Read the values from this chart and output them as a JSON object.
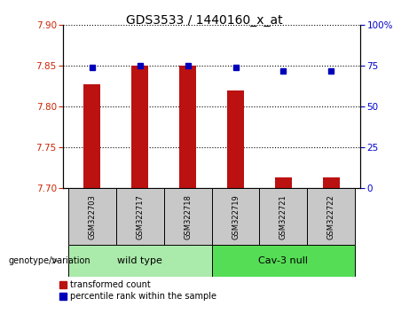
{
  "title": "GDS3533 / 1440160_x_at",
  "samples": [
    "GSM322703",
    "GSM322717",
    "GSM322718",
    "GSM322719",
    "GSM322721",
    "GSM322722"
  ],
  "red_values": [
    7.828,
    7.85,
    7.85,
    7.82,
    7.713,
    7.713
  ],
  "blue_values": [
    74,
    75,
    75,
    74,
    72,
    72
  ],
  "ylim_left": [
    7.7,
    7.9
  ],
  "ylim_right": [
    0,
    100
  ],
  "yticks_left": [
    7.7,
    7.75,
    7.8,
    7.85,
    7.9
  ],
  "yticks_right": [
    0,
    25,
    50,
    75,
    100
  ],
  "bar_color": "#BB1111",
  "dot_color": "#0000BB",
  "bar_width": 0.35,
  "plot_bg_color": "#FFFFFF",
  "label_row_bg": "#C8C8C8",
  "wt_color": "#AAEAAA",
  "cav_color": "#55DD55",
  "legend_red_label": "transformed count",
  "legend_blue_label": "percentile rank within the sample",
  "genotype_label": "genotype/variation",
  "title_fontsize": 10,
  "tick_fontsize": 7.5,
  "sample_fontsize": 6,
  "group_fontsize": 8,
  "legend_fontsize": 7
}
